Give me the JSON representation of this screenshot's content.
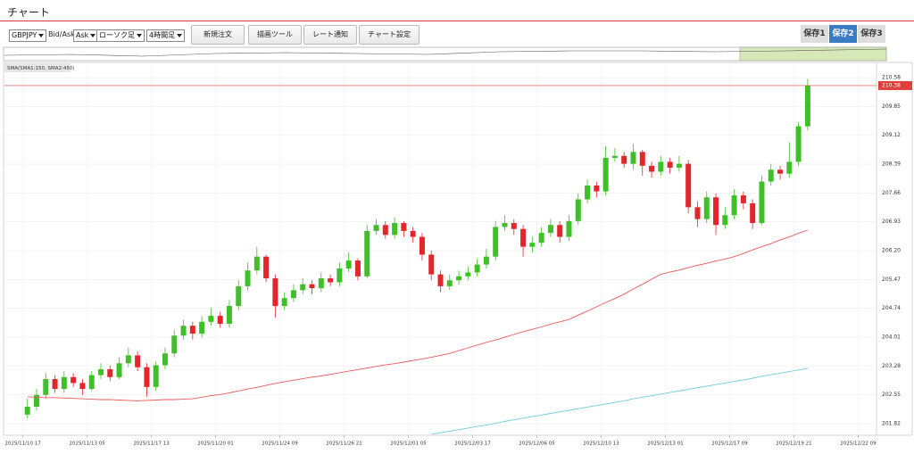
{
  "header": {
    "title": "チャート"
  },
  "toolbar": {
    "symbol": "GBPJPY",
    "bidask_label": "Bid/Ask",
    "side": "Ask",
    "chart_kind": "ローソク足",
    "timeframe": "4時間足",
    "buttons": [
      "新規注文",
      "描画ツール",
      "レート通知",
      "チャート設定"
    ]
  },
  "save_tabs": [
    "保存1",
    "保存2",
    "保存3"
  ],
  "chart_data": {
    "type": "candlestick",
    "indicator_label": "SMA(SMA1:150, SMA2:450)",
    "up_color": "#3fbf28",
    "down_color": "#e2262c",
    "open": [
      202.05,
      202.25,
      202.55,
      202.95,
      202.7,
      203.0,
      202.85,
      202.7,
      203.05,
      203.2,
      203.0,
      203.35,
      203.55,
      203.25,
      202.75,
      203.3,
      203.6,
      204.05,
      204.3,
      204.1,
      204.4,
      204.55,
      204.35,
      204.8,
      205.3,
      205.7,
      206.05,
      205.5,
      204.8,
      205.0,
      205.2,
      205.35,
      205.25,
      205.5,
      205.4,
      205.75,
      205.95,
      205.55,
      206.7,
      206.85,
      206.6,
      206.9,
      206.7,
      206.55,
      206.1,
      205.6,
      205.3,
      205.45,
      205.55,
      205.65,
      205.85,
      206.05,
      206.8,
      206.9,
      206.75,
      206.3,
      206.4,
      206.65,
      206.85,
      206.55,
      206.95,
      207.5,
      207.85,
      207.7,
      208.55,
      208.6,
      208.4,
      208.7,
      208.35,
      208.2,
      208.45,
      208.3,
      208.4,
      207.3,
      207.0,
      207.55,
      206.85,
      207.1,
      207.6,
      207.4,
      206.9,
      207.95,
      208.25,
      208.15,
      208.45,
      209.35
    ],
    "high": [
      202.45,
      202.7,
      203.1,
      203.05,
      203.15,
      203.1,
      202.95,
      203.15,
      203.35,
      203.3,
      203.5,
      203.75,
      203.65,
      203.35,
      203.4,
      203.75,
      204.2,
      204.45,
      204.4,
      204.55,
      204.75,
      204.65,
      204.95,
      205.45,
      205.9,
      206.3,
      206.1,
      205.6,
      205.15,
      205.35,
      205.5,
      205.45,
      205.65,
      205.6,
      205.9,
      206.15,
      206.0,
      206.85,
      207.0,
      206.95,
      207.05,
      206.95,
      206.8,
      206.65,
      206.2,
      205.7,
      205.6,
      205.7,
      205.8,
      206.0,
      206.25,
      206.95,
      207.1,
      207.0,
      206.85,
      206.55,
      206.8,
      207.0,
      206.95,
      207.1,
      207.65,
      208.0,
      207.95,
      208.85,
      208.8,
      208.7,
      208.9,
      208.75,
      208.45,
      208.6,
      208.55,
      208.6,
      208.5,
      207.45,
      207.7,
      207.65,
      207.3,
      207.75,
      207.7,
      207.5,
      208.1,
      208.4,
      208.35,
      208.95,
      209.45,
      210.55
    ],
    "low": [
      201.95,
      202.15,
      202.45,
      202.6,
      202.6,
      202.75,
      202.55,
      202.65,
      202.95,
      202.9,
      202.95,
      203.25,
      203.15,
      202.5,
      202.65,
      203.2,
      203.5,
      203.95,
      203.95,
      204.0,
      204.3,
      204.25,
      204.25,
      204.7,
      205.2,
      205.6,
      205.4,
      204.5,
      204.7,
      204.9,
      205.1,
      205.1,
      205.15,
      205.3,
      205.3,
      205.65,
      205.45,
      205.5,
      206.6,
      206.5,
      206.5,
      206.55,
      206.4,
      205.95,
      205.45,
      205.15,
      205.2,
      205.35,
      205.45,
      205.55,
      205.75,
      205.95,
      206.7,
      206.6,
      206.05,
      206.15,
      206.3,
      206.55,
      206.4,
      206.45,
      206.85,
      207.4,
      207.55,
      207.6,
      208.45,
      208.3,
      208.25,
      208.1,
      208.05,
      208.1,
      208.15,
      208.2,
      207.15,
      206.8,
      206.9,
      206.6,
      206.75,
      207.0,
      207.25,
      206.75,
      206.85,
      207.85,
      208.0,
      208.05,
      208.35,
      209.25
    ],
    "close": [
      202.25,
      202.55,
      202.95,
      202.7,
      203.0,
      202.85,
      202.7,
      203.05,
      203.2,
      203.0,
      203.35,
      203.55,
      203.25,
      202.75,
      203.3,
      203.6,
      204.05,
      204.3,
      204.1,
      204.4,
      204.55,
      204.35,
      204.8,
      205.3,
      205.7,
      206.05,
      205.5,
      204.8,
      205.0,
      205.2,
      205.35,
      205.25,
      205.5,
      205.4,
      205.75,
      205.95,
      205.55,
      206.7,
      206.85,
      206.6,
      206.9,
      206.7,
      206.55,
      206.1,
      205.6,
      205.3,
      205.45,
      205.55,
      205.65,
      205.85,
      206.05,
      206.8,
      206.9,
      206.75,
      206.3,
      206.4,
      206.65,
      206.85,
      206.55,
      206.95,
      207.5,
      207.85,
      207.7,
      208.55,
      208.6,
      208.4,
      208.7,
      208.35,
      208.2,
      208.45,
      208.3,
      208.4,
      207.3,
      207.0,
      207.55,
      206.85,
      207.1,
      207.6,
      207.4,
      206.9,
      207.95,
      208.25,
      208.15,
      208.45,
      209.35,
      210.38
    ],
    "sma_lines": [
      {
        "color": "#f05a5a",
        "values": [
          202.5,
          202.49,
          202.48,
          202.48,
          202.47,
          202.46,
          202.45,
          202.44,
          202.43,
          202.43,
          202.42,
          202.41,
          202.4,
          202.41,
          202.42,
          202.43,
          202.43,
          202.44,
          202.45,
          202.49,
          202.53,
          202.56,
          202.6,
          202.65,
          202.7,
          202.74,
          202.79,
          202.84,
          202.88,
          202.92,
          202.96,
          203.0,
          203.03,
          203.07,
          203.11,
          203.15,
          203.19,
          203.23,
          203.27,
          203.31,
          203.34,
          203.38,
          203.42,
          203.46,
          203.5,
          203.55,
          203.6,
          203.67,
          203.74,
          203.81,
          203.88,
          203.94,
          204.01,
          204.08,
          204.15,
          204.21,
          204.27,
          204.34,
          204.4,
          204.46,
          204.57,
          204.67,
          204.78,
          204.89,
          204.99,
          205.1,
          205.23,
          205.35,
          205.48,
          205.6,
          205.66,
          205.71,
          205.77,
          205.83,
          205.88,
          205.94,
          205.99,
          206.05,
          206.13,
          206.22,
          206.3,
          206.38,
          206.47,
          206.55,
          206.64,
          206.72
        ]
      },
      {
        "color": "#6fcde0",
        "values": [
          null,
          null,
          null,
          null,
          null,
          null,
          null,
          null,
          null,
          null,
          null,
          null,
          null,
          null,
          null,
          null,
          null,
          null,
          null,
          null,
          null,
          null,
          null,
          null,
          null,
          null,
          null,
          null,
          null,
          null,
          null,
          null,
          null,
          null,
          null,
          null,
          null,
          null,
          null,
          null,
          null,
          null,
          null,
          null,
          201.55,
          201.59,
          201.63,
          201.67,
          201.71,
          201.75,
          201.79,
          201.83,
          201.88,
          201.92,
          201.96,
          202.0,
          202.04,
          202.08,
          202.12,
          202.16,
          202.2,
          202.24,
          202.28,
          202.32,
          202.36,
          202.4,
          202.45,
          202.49,
          202.53,
          202.57,
          202.61,
          202.65,
          202.69,
          202.73,
          202.77,
          202.81,
          202.85,
          202.89,
          202.93,
          202.97,
          203.02,
          203.06,
          203.1,
          203.14,
          203.18,
          203.22
        ]
      }
    ],
    "last_price": 210.38,
    "last_price_color": "#e0403c",
    "xlim": [
      -2,
      93
    ],
    "xticks": [
      {
        "value": 0,
        "label": "2025/11/10 17"
      },
      {
        "value": 7,
        "label": "2025/11/13 05"
      },
      {
        "value": 14,
        "label": "2025/11/17 13"
      },
      {
        "value": 21,
        "label": "2025/11/20 01"
      },
      {
        "value": 28,
        "label": "2025/11/24 09"
      },
      {
        "value": 35,
        "label": "2025/11/26 21"
      },
      {
        "value": 42,
        "label": "2025/12/01 05"
      },
      {
        "value": 49,
        "label": "2025/12/03 17"
      },
      {
        "value": 56,
        "label": "2025/12/06 05"
      },
      {
        "value": 63,
        "label": "2025/12/10 13"
      },
      {
        "value": 70,
        "label": "2025/12/13 01"
      },
      {
        "value": 77,
        "label": "2025/12/17 09"
      },
      {
        "value": 84,
        "label": "2025/12/19 21"
      },
      {
        "value": 91,
        "label": "2025/12/22 09"
      }
    ],
    "ylim": [
      201.55,
      210.74
    ],
    "yticks": [
      201.82,
      202.55,
      203.28,
      204.01,
      204.74,
      205.47,
      {
        "value": 206.2,
        "label": "206.20"
      },
      206.93,
      207.66,
      208.39,
      209.12,
      209.85,
      210.58
    ],
    "grid": true
  }
}
